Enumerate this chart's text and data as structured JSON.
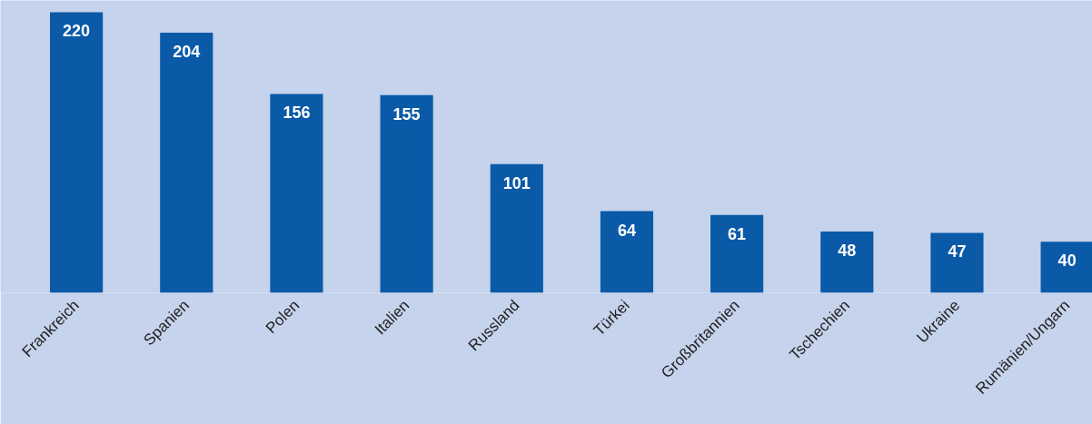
{
  "chart_data": {
    "type": "bar",
    "categories": [
      "Frankreich",
      "Spanien",
      "Polen",
      "Italien",
      "Russland",
      "Türkei",
      "Großbritannien",
      "Tschechien",
      "Ukraine",
      "Rumänien/Ungarn"
    ],
    "values": [
      220,
      204,
      156,
      155,
      101,
      64,
      61,
      48,
      47,
      40
    ],
    "color": "#0a5aa8",
    "data_labels": true
  }
}
